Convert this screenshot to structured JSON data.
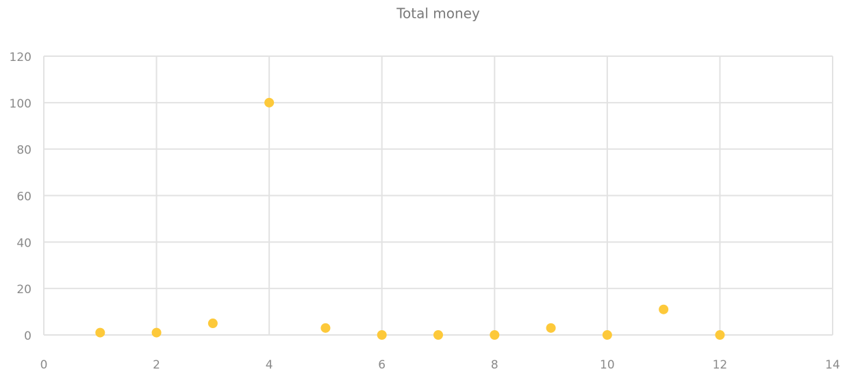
{
  "chart_data": {
    "type": "scatter",
    "title": "Total money",
    "series": [
      {
        "name": "Total money",
        "color": "#fdc93a",
        "x": [
          1,
          2,
          3,
          4,
          5,
          6,
          7,
          8,
          9,
          10,
          11,
          12
        ],
        "values": [
          1,
          1,
          5,
          100,
          3,
          0,
          0,
          0,
          3,
          0,
          11,
          0
        ]
      }
    ],
    "xlim": [
      0,
      14
    ],
    "xticks": [
      0,
      2,
      4,
      6,
      8,
      10,
      12,
      14
    ],
    "ylim": [
      0,
      120
    ],
    "yticks": [
      0,
      20,
      40,
      60,
      80,
      100,
      120
    ],
    "grid": true
  }
}
